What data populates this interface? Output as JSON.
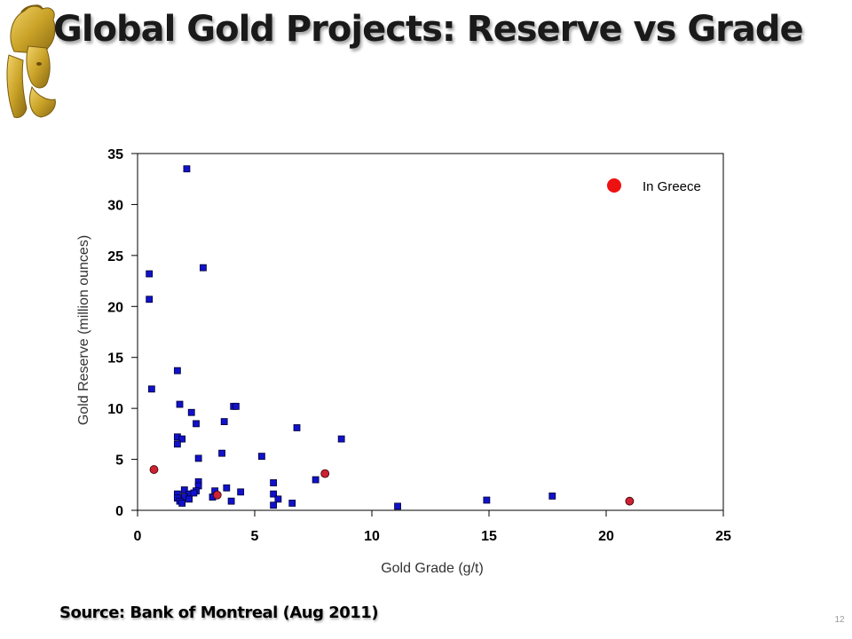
{
  "slide": {
    "title": "Global Gold Projects: Reserve vs Grade",
    "source": "Source: Bank of Montreal (Aug 2011)",
    "page_number": "12"
  },
  "logo": {
    "icon": "greek-helmet-head-logo",
    "color": "#C9A227"
  },
  "colors": {
    "global_marker": "#1111CC",
    "greece_marker": "#CC2233",
    "legend_marker": "#EE1111"
  },
  "chart_data": {
    "type": "scatter",
    "xlabel": "Gold Grade (g/t)",
    "ylabel": "Gold Reserve (million ounces)",
    "xlim": [
      0,
      25
    ],
    "ylim": [
      0,
      35
    ],
    "xticks": [
      0,
      5,
      10,
      15,
      20,
      25
    ],
    "yticks": [
      0,
      5,
      10,
      15,
      20,
      25,
      30,
      35
    ],
    "grid": false,
    "legend_position": "top-right",
    "series": [
      {
        "marker": "square",
        "points": [
          [
            2.1,
            33.5
          ],
          [
            2.8,
            23.8
          ],
          [
            0.5,
            23.2
          ],
          [
            0.5,
            20.7
          ],
          [
            1.7,
            13.7
          ],
          [
            0.6,
            11.9
          ],
          [
            1.8,
            10.4
          ],
          [
            2.3,
            9.6
          ],
          [
            4.1,
            10.2
          ],
          [
            4.2,
            10.2
          ],
          [
            2.5,
            8.5
          ],
          [
            3.7,
            8.7
          ],
          [
            6.8,
            8.1
          ],
          [
            8.7,
            7.0
          ],
          [
            1.7,
            7.2
          ],
          [
            1.9,
            7.0
          ],
          [
            1.7,
            6.5
          ],
          [
            3.6,
            5.6
          ],
          [
            5.3,
            5.3
          ],
          [
            2.6,
            5.1
          ],
          [
            7.6,
            3.0
          ],
          [
            2.6,
            2.8
          ],
          [
            5.8,
            2.7
          ],
          [
            2.6,
            2.4
          ],
          [
            3.8,
            2.2
          ],
          [
            2.0,
            2.0
          ],
          [
            2.5,
            1.9
          ],
          [
            3.3,
            1.9
          ],
          [
            4.4,
            1.8
          ],
          [
            1.7,
            1.6
          ],
          [
            2.2,
            1.6
          ],
          [
            2.4,
            1.7
          ],
          [
            5.8,
            1.6
          ],
          [
            3.2,
            1.3
          ],
          [
            1.7,
            1.2
          ],
          [
            2.0,
            1.3
          ],
          [
            2.2,
            1.1
          ],
          [
            4.0,
            0.9
          ],
          [
            6.0,
            1.1
          ],
          [
            1.8,
            0.9
          ],
          [
            1.9,
            0.7
          ],
          [
            6.6,
            0.7
          ],
          [
            5.8,
            0.5
          ],
          [
            11.1,
            0.4
          ],
          [
            14.9,
            1.0
          ],
          [
            17.7,
            1.4
          ]
        ]
      },
      {
        "name": "In Greece",
        "marker": "circle",
        "points": [
          [
            0.7,
            4.0
          ],
          [
            3.4,
            1.5
          ],
          [
            8.0,
            3.6
          ],
          [
            21.0,
            0.9
          ]
        ]
      }
    ]
  }
}
